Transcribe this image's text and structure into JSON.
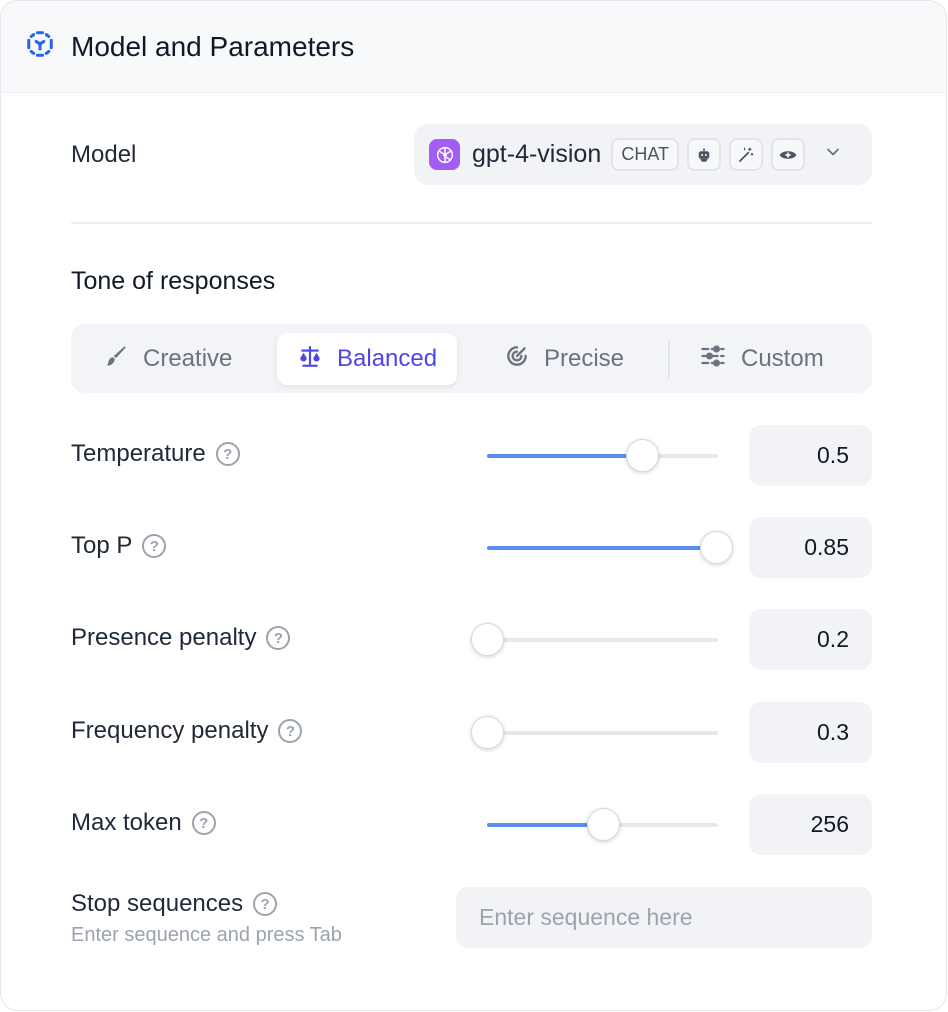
{
  "header": {
    "title": "Model and Parameters",
    "icon": "model-cube-icon"
  },
  "model": {
    "label": "Model",
    "name": "gpt-4-vision",
    "badge": "CHAT",
    "capability_icons": [
      "robot-icon",
      "magic-wand-icon",
      "eye-icon"
    ]
  },
  "tone": {
    "title": "Tone of responses",
    "tabs": [
      {
        "label": "Creative",
        "icon": "brush-icon"
      },
      {
        "label": "Balanced",
        "icon": "scale-icon",
        "active": true
      },
      {
        "label": "Precise",
        "icon": "target-icon"
      },
      {
        "label": "Custom",
        "icon": "sliders-icon"
      }
    ]
  },
  "params": [
    {
      "label": "Temperature",
      "value": "0.5",
      "slider_fraction": 0.67
    },
    {
      "label": "Top P",
      "value": "0.85",
      "slider_fraction": 0.99
    },
    {
      "label": "Presence penalty",
      "value": "0.2",
      "slider_fraction": 0
    },
    {
      "label": "Frequency penalty",
      "value": "0.3",
      "slider_fraction": 0
    },
    {
      "label": "Max token",
      "value": "256",
      "slider_fraction": 0.5
    }
  ],
  "stop": {
    "label": "Stop sequences",
    "hint": "Enter sequence and press Tab",
    "placeholder": "Enter sequence here"
  },
  "colors": {
    "accent": "#4f46e5",
    "slider": "#5b8def",
    "openai": "#a35cf5"
  }
}
